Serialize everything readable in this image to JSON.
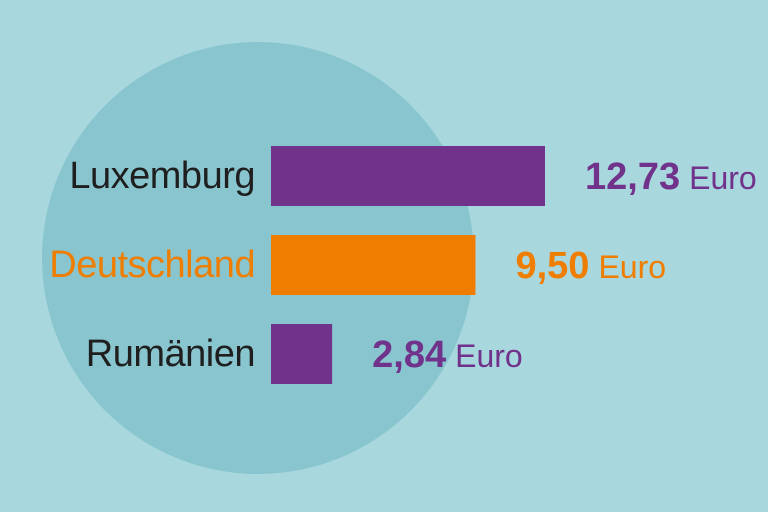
{
  "colors": {
    "background": "#a9d7de",
    "circle": "#88c5ce",
    "purple": "#70328a",
    "orange": "#ef7d00",
    "label": "#1f1f1f"
  },
  "chart_data": {
    "type": "bar",
    "orientation": "horizontal",
    "title": "",
    "xlabel": "",
    "ylabel": "",
    "unit": "Euro",
    "categories": [
      "Luxemburg",
      "Deutschland",
      "Rumänien"
    ],
    "values": [
      12.73,
      9.5,
      2.84
    ],
    "value_labels": [
      "12,73",
      "9,50",
      "2,84"
    ],
    "highlight": "Deutschland",
    "xlim": [
      0,
      12.73
    ],
    "grid": false,
    "legend": "none"
  }
}
